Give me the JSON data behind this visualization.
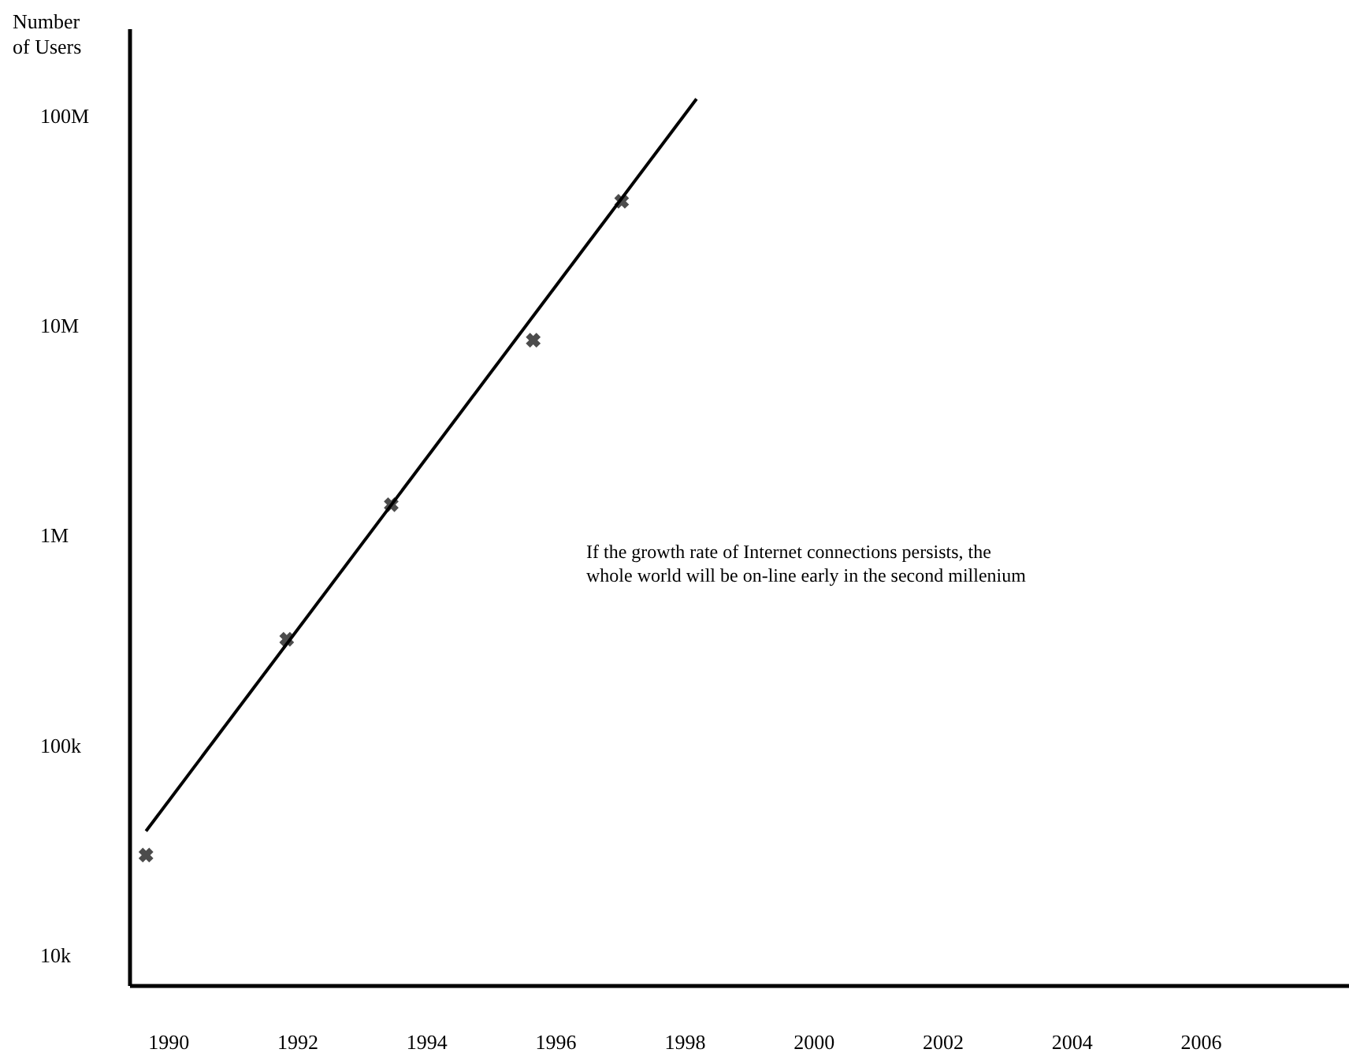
{
  "chart_data": {
    "type": "scatter",
    "ylabel": "Number\nof Users",
    "log": "y",
    "grid": false,
    "xlim": [
      1989.4,
      2008.3
    ],
    "xticks": [
      1990,
      1992,
      1994,
      1996,
      1998,
      2000,
      2002,
      2004,
      2006
    ],
    "ylim": [
      7200,
      260000000
    ],
    "yticks": [
      {
        "value": 10000,
        "label": "10k"
      },
      {
        "value": 100000,
        "label": "100k"
      },
      {
        "value": 1000000,
        "label": "1M"
      },
      {
        "value": 10000000,
        "label": "10M"
      },
      {
        "value": 100000000,
        "label": "100M"
      }
    ],
    "series": [
      {
        "marker": "cross",
        "color": "#000000",
        "x": [
          1989.66,
          1991.84,
          1993.46,
          1995.66,
          1997.03
        ],
        "values": [
          30000,
          320000,
          1400000,
          8500000,
          39000000
        ]
      },
      {
        "type": "line",
        "marker": "none",
        "line_style": "solid",
        "color": "#000000",
        "x": [
          1989.66,
          1998.19
        ],
        "values": [
          39000,
          120000000
        ]
      }
    ],
    "annotations": [
      "If the growth rate of Internet connections persists, the\nwhole world will be on-line early in the second millenium"
    ]
  }
}
